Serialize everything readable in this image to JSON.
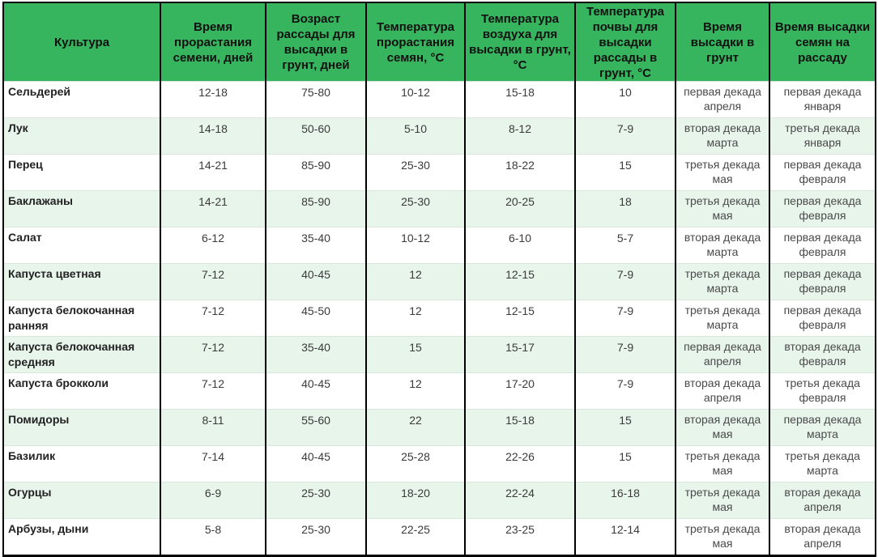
{
  "table": {
    "headers": [
      "Культура",
      "Время прорастания семени, дней",
      "Возраст рассады для высадки в грунт, дней",
      "Температура прорастания семян, °C",
      "Температура воздуха для высадки в грунт, °C",
      "Температура почвы для высадки рассады в грунт, °C",
      "Время высадки в грунт",
      "Время высадки семян на рассаду"
    ],
    "rows": [
      [
        "Сельдерей",
        "12-18",
        "75-80",
        "10-12",
        "15-18",
        "10",
        "первая декада апреля",
        "первая декада января"
      ],
      [
        "Лук",
        "14-18",
        "50-60",
        "5-10",
        "8-12",
        "7-9",
        "вторая декада марта",
        "третья декада января"
      ],
      [
        "Перец",
        "14-21",
        "85-90",
        "25-30",
        "18-22",
        "15",
        "третья декада мая",
        "первая декада февраля"
      ],
      [
        "Баклажаны",
        "14-21",
        "85-90",
        "25-30",
        "20-25",
        "18",
        "третья декада мая",
        "первая декада февраля"
      ],
      [
        "Салат",
        "6-12",
        "35-40",
        "10-12",
        "6-10",
        "5-7",
        "вторая декада марта",
        "первая декада февраля"
      ],
      [
        "Капуста цветная",
        "7-12",
        "40-45",
        "12",
        "12-15",
        "7-9",
        "третья декада марта",
        "первая декада февраля"
      ],
      [
        "Капуста белокочанная ранняя",
        "7-12",
        "45-50",
        "12",
        "12-15",
        "7-9",
        "третья декада марта",
        "первая декада февраля"
      ],
      [
        "Капуста белокочанная средняя",
        "7-12",
        "35-40",
        "15",
        "15-17",
        "7-9",
        "первая декада апреля",
        "вторая декада февраля"
      ],
      [
        "Капуста брокколи",
        "7-12",
        "40-45",
        "12",
        "17-20",
        "7-9",
        "вторая декада апреля",
        "третья декада февраля"
      ],
      [
        "Помидоры",
        "8-11",
        "55-60",
        "22",
        "15-18",
        "15",
        "вторая декада мая",
        "первая декада марта"
      ],
      [
        "Базилик",
        "7-14",
        "40-45",
        "25-28",
        "22-26",
        "15",
        "третья декада мая",
        "третья декада марта"
      ],
      [
        "Огурцы",
        "6-9",
        "25-30",
        "18-20",
        "22-24",
        "16-18",
        "третья декада мая",
        "вторая декада апреля"
      ],
      [
        "Арбузы, дыни",
        "5-8",
        "25-30",
        "22-25",
        "23-25",
        "12-14",
        "третья декада мая",
        "вторая декада апреля"
      ]
    ]
  },
  "colors": {
    "header_bg": "#37b45e",
    "row_alt_bg": "#e8f5eb",
    "border": "#000000"
  }
}
